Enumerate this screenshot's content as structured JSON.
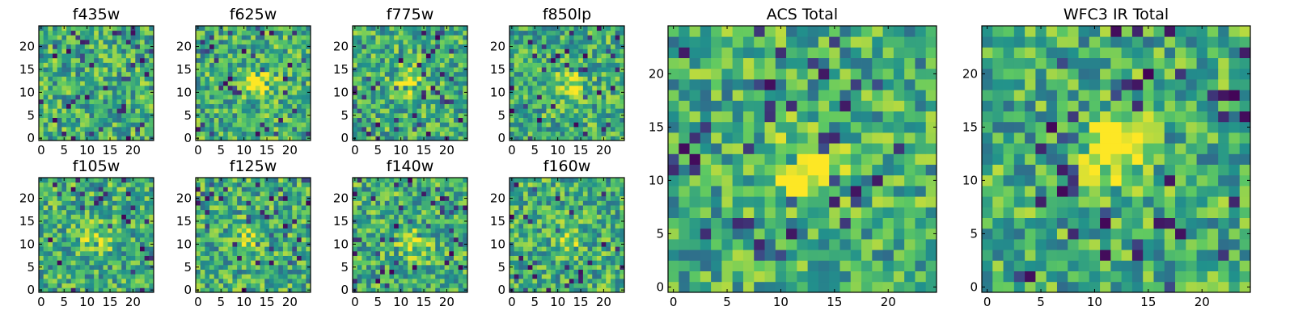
{
  "chart_data": [
    {
      "type": "heatmap",
      "title": "f435w",
      "grid_size": 25,
      "xlim": [
        0,
        24
      ],
      "ylim": [
        0,
        24
      ],
      "xticks": [
        0,
        5,
        10,
        15,
        20
      ],
      "yticks": [
        0,
        5,
        10,
        15,
        20
      ],
      "blob": {
        "x": 12,
        "y": 12,
        "strength": 0.0
      },
      "colormap": "viridis"
    },
    {
      "type": "heatmap",
      "title": "f625w",
      "grid_size": 25,
      "xlim": [
        0,
        24
      ],
      "ylim": [
        0,
        24
      ],
      "xticks": [
        0,
        5,
        10,
        15,
        20
      ],
      "yticks": [
        0,
        5,
        10,
        15,
        20
      ],
      "blob": {
        "x": 13,
        "y": 12,
        "strength": 0.45
      },
      "colormap": "viridis"
    },
    {
      "type": "heatmap",
      "title": "f775w",
      "grid_size": 25,
      "xlim": [
        0,
        24
      ],
      "ylim": [
        0,
        24
      ],
      "xticks": [
        0,
        5,
        10,
        15,
        20
      ],
      "yticks": [
        0,
        5,
        10,
        15,
        20
      ],
      "blob": {
        "x": 12,
        "y": 12,
        "strength": 0.4
      },
      "colormap": "viridis"
    },
    {
      "type": "heatmap",
      "title": "f850lp",
      "grid_size": 25,
      "xlim": [
        0,
        24
      ],
      "ylim": [
        0,
        24
      ],
      "xticks": [
        0,
        5,
        10,
        15,
        20
      ],
      "yticks": [
        0,
        5,
        10,
        15,
        20
      ],
      "blob": {
        "x": 13,
        "y": 12,
        "strength": 0.3
      },
      "colormap": "viridis"
    },
    {
      "type": "heatmap",
      "title": "f105w",
      "grid_size": 25,
      "xlim": [
        0,
        24
      ],
      "ylim": [
        0,
        24
      ],
      "xticks": [
        0,
        5,
        10,
        15,
        20
      ],
      "yticks": [
        0,
        5,
        10,
        15,
        20
      ],
      "blob": {
        "x": 12,
        "y": 11,
        "strength": 0.3
      },
      "colormap": "viridis"
    },
    {
      "type": "heatmap",
      "title": "f125w",
      "grid_size": 25,
      "xlim": [
        0,
        24
      ],
      "ylim": [
        0,
        24
      ],
      "xticks": [
        0,
        5,
        10,
        15,
        20
      ],
      "yticks": [
        0,
        5,
        10,
        15,
        20
      ],
      "blob": {
        "x": 12,
        "y": 11,
        "strength": 0.25
      },
      "colormap": "viridis"
    },
    {
      "type": "heatmap",
      "title": "f140w",
      "grid_size": 25,
      "xlim": [
        0,
        24
      ],
      "ylim": [
        0,
        24
      ],
      "xticks": [
        0,
        5,
        10,
        15,
        20
      ],
      "yticks": [
        0,
        5,
        10,
        15,
        20
      ],
      "blob": {
        "x": 13,
        "y": 10,
        "strength": 0.35
      },
      "colormap": "viridis"
    },
    {
      "type": "heatmap",
      "title": "f160w",
      "grid_size": 25,
      "xlim": [
        0,
        24
      ],
      "ylim": [
        0,
        24
      ],
      "xticks": [
        0,
        5,
        10,
        15,
        20
      ],
      "yticks": [
        0,
        5,
        10,
        15,
        20
      ],
      "blob": {
        "x": 12,
        "y": 11,
        "strength": 0.2
      },
      "colormap": "viridis"
    },
    {
      "type": "heatmap",
      "title": "ACS Total",
      "grid_size": 25,
      "xlim": [
        0,
        24
      ],
      "ylim": [
        0,
        24
      ],
      "xticks": [
        0,
        5,
        10,
        15,
        20
      ],
      "yticks": [
        0,
        5,
        10,
        15,
        20
      ],
      "blob": {
        "x": 12,
        "y": 11,
        "strength": 0.55
      },
      "colormap": "viridis"
    },
    {
      "type": "heatmap",
      "title": "WFC3 IR Total",
      "grid_size": 25,
      "xlim": [
        0,
        24
      ],
      "ylim": [
        0,
        24
      ],
      "xticks": [
        0,
        5,
        10,
        15,
        20
      ],
      "yticks": [
        0,
        5,
        10,
        15,
        20
      ],
      "blob": {
        "x": 12,
        "y": 13,
        "strength": 0.5
      },
      "colormap": "viridis"
    }
  ],
  "colors": {
    "viridis_stops": [
      "#440154",
      "#3b528b",
      "#21918c",
      "#5ec962",
      "#fde725"
    ]
  }
}
